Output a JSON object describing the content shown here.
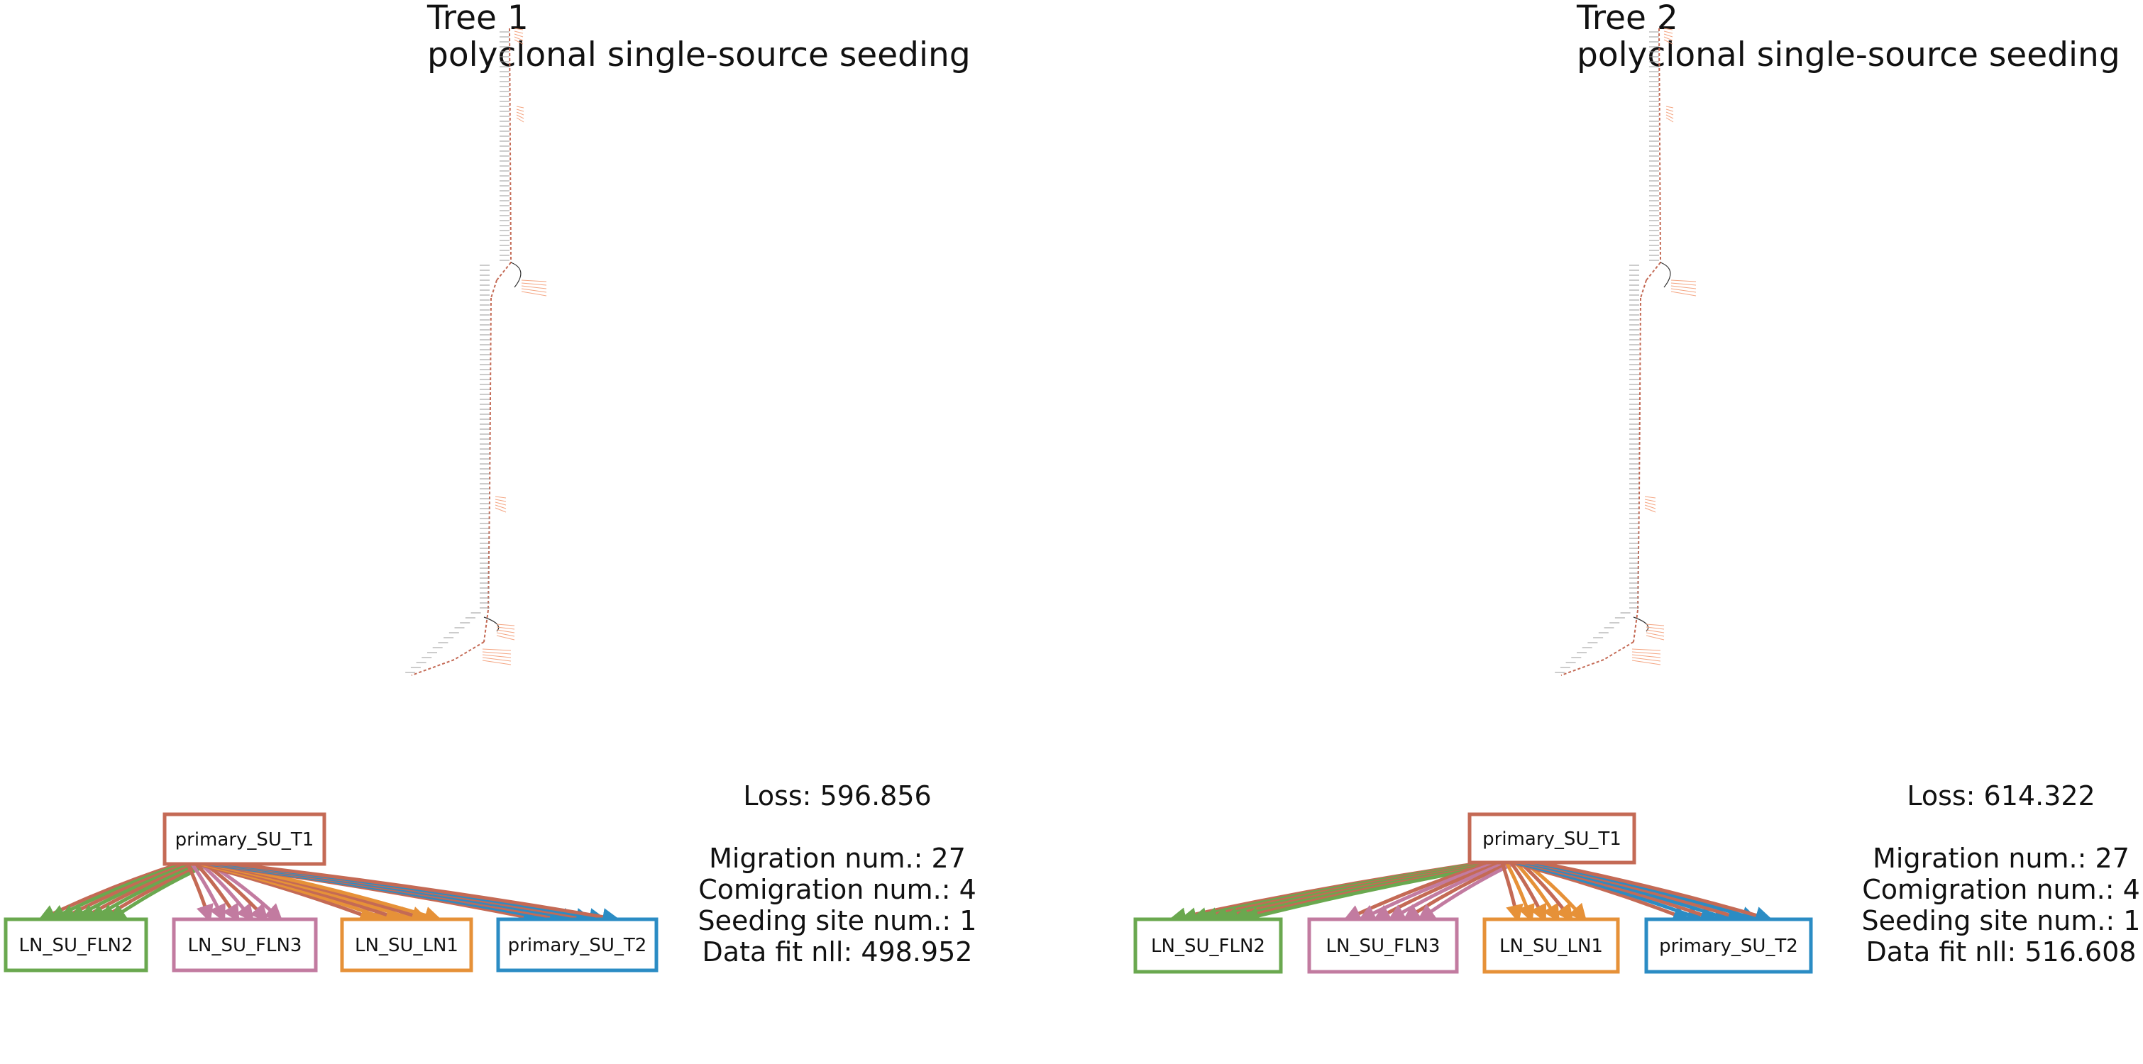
{
  "colors": {
    "primary_SU_T1": "#c46a55",
    "LN_SU_FLN2": "#6aa84f",
    "LN_SU_FLN3": "#c27ba0",
    "LN_SU_LN1": "#e69138",
    "primary_SU_T2": "#2b8cc4",
    "tree_line": "#999999"
  },
  "trees": [
    {
      "title": "Tree 1",
      "subtitle": "polyclonal single-source seeding",
      "loss": "Loss: 596.856",
      "migration": "Migration num.: 27",
      "comigration": "Comigration num.: 4",
      "seeding": "Seeding site num.: 1",
      "datafit": "Data fit nll: 498.952",
      "graph": {
        "source": "primary_SU_T1",
        "targets": [
          "LN_SU_FLN2",
          "LN_SU_FLN3",
          "LN_SU_LN1",
          "primary_SU_T2"
        ],
        "edge_counts": [
          8,
          6,
          6,
          7
        ]
      }
    },
    {
      "title": "Tree 2",
      "subtitle": "polyclonal single-source seeding",
      "loss": "Loss: 614.322",
      "migration": "Migration num.: 27",
      "comigration": "Comigration num.: 4",
      "seeding": "Seeding site num.: 1",
      "datafit": "Data fit nll: 516.608",
      "graph": {
        "source": "primary_SU_T1",
        "targets": [
          "LN_SU_FLN2",
          "LN_SU_FLN3",
          "LN_SU_LN1",
          "primary_SU_T2"
        ],
        "edge_counts": [
          8,
          6,
          6,
          7
        ]
      }
    }
  ]
}
